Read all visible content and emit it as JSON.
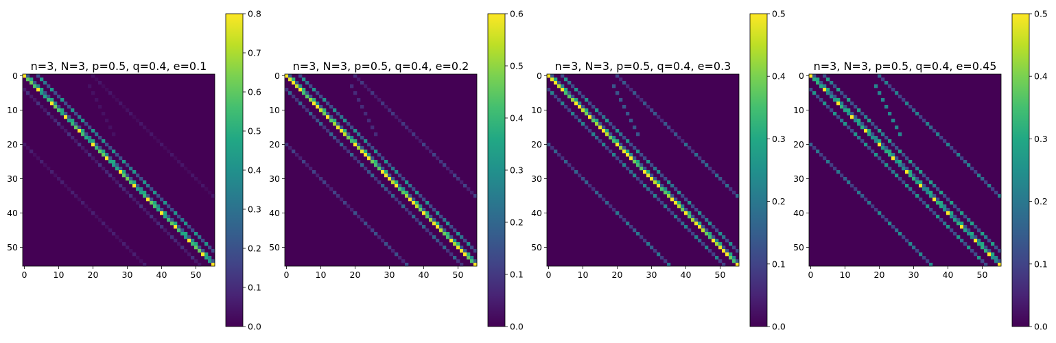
{
  "chart_data": [
    {
      "type": "heatmap",
      "title": "n=3, N=3, p=0.5, q=0.4, e=0.1",
      "size": 56,
      "colormap": "viridis",
      "xticks": [
        0,
        10,
        20,
        30,
        40,
        50
      ],
      "yticks": [
        0,
        10,
        20,
        30,
        40,
        50
      ],
      "vmin": 0.0,
      "vmax": 0.8,
      "colorbar_ticks": [
        "0.0",
        "0.1",
        "0.2",
        "0.3",
        "0.4",
        "0.5",
        "0.6",
        "0.7",
        "0.8"
      ],
      "diagonal_value": 0.62,
      "diagonal_peak": 0.8,
      "off_diagonal": [
        {
          "row_start": 0,
          "col_start": 4,
          "step_row": 1,
          "step_col": 1,
          "length": 52,
          "value": 0.42
        },
        {
          "row_start": 0,
          "col_start": 1,
          "step_row": 1,
          "step_col": 1,
          "length": 55,
          "value": 0.48
        },
        {
          "row_start": 4,
          "col_start": 0,
          "step_row": 1,
          "step_col": 1,
          "length": 52,
          "value": 0.12
        },
        {
          "row_start": 20,
          "col_start": 0,
          "step_row": 1,
          "step_col": 1,
          "length": 36,
          "value": 0.07
        },
        {
          "row_start": 0,
          "col_start": 20,
          "step_row": 1,
          "step_col": 1,
          "length": 36,
          "value": 0.05
        },
        {
          "row_start": 40,
          "col_start": 20,
          "step_row": 1,
          "step_col": 1,
          "length": 16,
          "value": 0.06
        },
        {
          "row_start": 3,
          "col_start": 19,
          "step_row": 2,
          "step_col": 1,
          "length": 8,
          "value": 0.05
        }
      ]
    },
    {
      "type": "heatmap",
      "title": "n=3, N=3, p=0.5, q=0.4, e=0.2",
      "size": 56,
      "colormap": "viridis",
      "xticks": [
        0,
        10,
        20,
        30,
        40,
        50
      ],
      "yticks": [
        0,
        10,
        20,
        30,
        40,
        50
      ],
      "vmin": 0.0,
      "vmax": 0.6,
      "colorbar_ticks": [
        "0.0",
        "0.1",
        "0.2",
        "0.3",
        "0.4",
        "0.5",
        "0.6"
      ],
      "diagonal_value": 0.6,
      "diagonal_peak": 0.6,
      "off_diagonal": [
        {
          "row_start": 0,
          "col_start": 1,
          "step_row": 1,
          "step_col": 1,
          "length": 55,
          "value": 0.38
        },
        {
          "row_start": 0,
          "col_start": 4,
          "step_row": 1,
          "step_col": 1,
          "length": 52,
          "value": 0.3
        },
        {
          "row_start": 4,
          "col_start": 0,
          "step_row": 1,
          "step_col": 1,
          "length": 52,
          "value": 0.2
        },
        {
          "row_start": 20,
          "col_start": 0,
          "step_row": 1,
          "step_col": 1,
          "length": 36,
          "value": 0.12
        },
        {
          "row_start": 0,
          "col_start": 20,
          "step_row": 1,
          "step_col": 1,
          "length": 36,
          "value": 0.1
        },
        {
          "row_start": 40,
          "col_start": 20,
          "step_row": 1,
          "step_col": 1,
          "length": 16,
          "value": 0.15
        },
        {
          "row_start": 20,
          "col_start": 40,
          "step_row": 1,
          "step_col": 1,
          "length": 16,
          "value": 0.12
        },
        {
          "row_start": 3,
          "col_start": 19,
          "step_row": 2,
          "step_col": 1,
          "length": 8,
          "value": 0.1
        }
      ]
    },
    {
      "type": "heatmap",
      "title": "n=3, N=3, p=0.5, q=0.4, e=0.3",
      "size": 56,
      "colormap": "viridis",
      "xticks": [
        0,
        10,
        20,
        30,
        40,
        50
      ],
      "yticks": [
        0,
        10,
        20,
        30,
        40,
        50
      ],
      "vmin": 0.0,
      "vmax": 0.5,
      "colorbar_ticks": [
        "0.0",
        "0.1",
        "0.2",
        "0.3",
        "0.4",
        "0.5"
      ],
      "diagonal_value": 0.5,
      "diagonal_peak": 0.5,
      "off_diagonal": [
        {
          "row_start": 0,
          "col_start": 1,
          "step_row": 1,
          "step_col": 1,
          "length": 55,
          "value": 0.3
        },
        {
          "row_start": 0,
          "col_start": 4,
          "step_row": 1,
          "step_col": 1,
          "length": 52,
          "value": 0.25
        },
        {
          "row_start": 4,
          "col_start": 0,
          "step_row": 1,
          "step_col": 1,
          "length": 52,
          "value": 0.22
        },
        {
          "row_start": 20,
          "col_start": 0,
          "step_row": 1,
          "step_col": 1,
          "length": 36,
          "value": 0.16
        },
        {
          "row_start": 0,
          "col_start": 20,
          "step_row": 1,
          "step_col": 1,
          "length": 36,
          "value": 0.14
        },
        {
          "row_start": 40,
          "col_start": 20,
          "step_row": 1,
          "step_col": 1,
          "length": 16,
          "value": 0.2
        },
        {
          "row_start": 20,
          "col_start": 40,
          "step_row": 1,
          "step_col": 1,
          "length": 16,
          "value": 0.18
        },
        {
          "row_start": 3,
          "col_start": 19,
          "step_row": 2,
          "step_col": 1,
          "length": 8,
          "value": 0.18
        }
      ]
    },
    {
      "type": "heatmap",
      "title": "n=3, N=3, p=0.5, q=0.4, e=0.45",
      "size": 56,
      "colormap": "viridis",
      "xticks": [
        0,
        10,
        20,
        30,
        40,
        50
      ],
      "yticks": [
        0,
        10,
        20,
        30,
        40,
        50
      ],
      "vmin": 0.0,
      "vmax": 0.5,
      "colorbar_ticks": [
        "0.0",
        "0.1",
        "0.2",
        "0.3",
        "0.4",
        "0.5"
      ],
      "diagonal_value": 0.32,
      "diagonal_peak": 0.5,
      "off_diagonal": [
        {
          "row_start": 0,
          "col_start": 1,
          "step_row": 1,
          "step_col": 1,
          "length": 55,
          "value": 0.3
        },
        {
          "row_start": 0,
          "col_start": 4,
          "step_row": 1,
          "step_col": 1,
          "length": 52,
          "value": 0.28
        },
        {
          "row_start": 4,
          "col_start": 0,
          "step_row": 1,
          "step_col": 1,
          "length": 52,
          "value": 0.26
        },
        {
          "row_start": 20,
          "col_start": 0,
          "step_row": 1,
          "step_col": 1,
          "length": 36,
          "value": 0.2
        },
        {
          "row_start": 0,
          "col_start": 20,
          "step_row": 1,
          "step_col": 1,
          "length": 36,
          "value": 0.22
        },
        {
          "row_start": 40,
          "col_start": 20,
          "step_row": 1,
          "step_col": 1,
          "length": 16,
          "value": 0.24
        },
        {
          "row_start": 20,
          "col_start": 40,
          "step_row": 1,
          "step_col": 1,
          "length": 16,
          "value": 0.22
        },
        {
          "row_start": 3,
          "col_start": 19,
          "step_row": 2,
          "step_col": 1,
          "length": 8,
          "value": 0.3
        }
      ]
    }
  ]
}
